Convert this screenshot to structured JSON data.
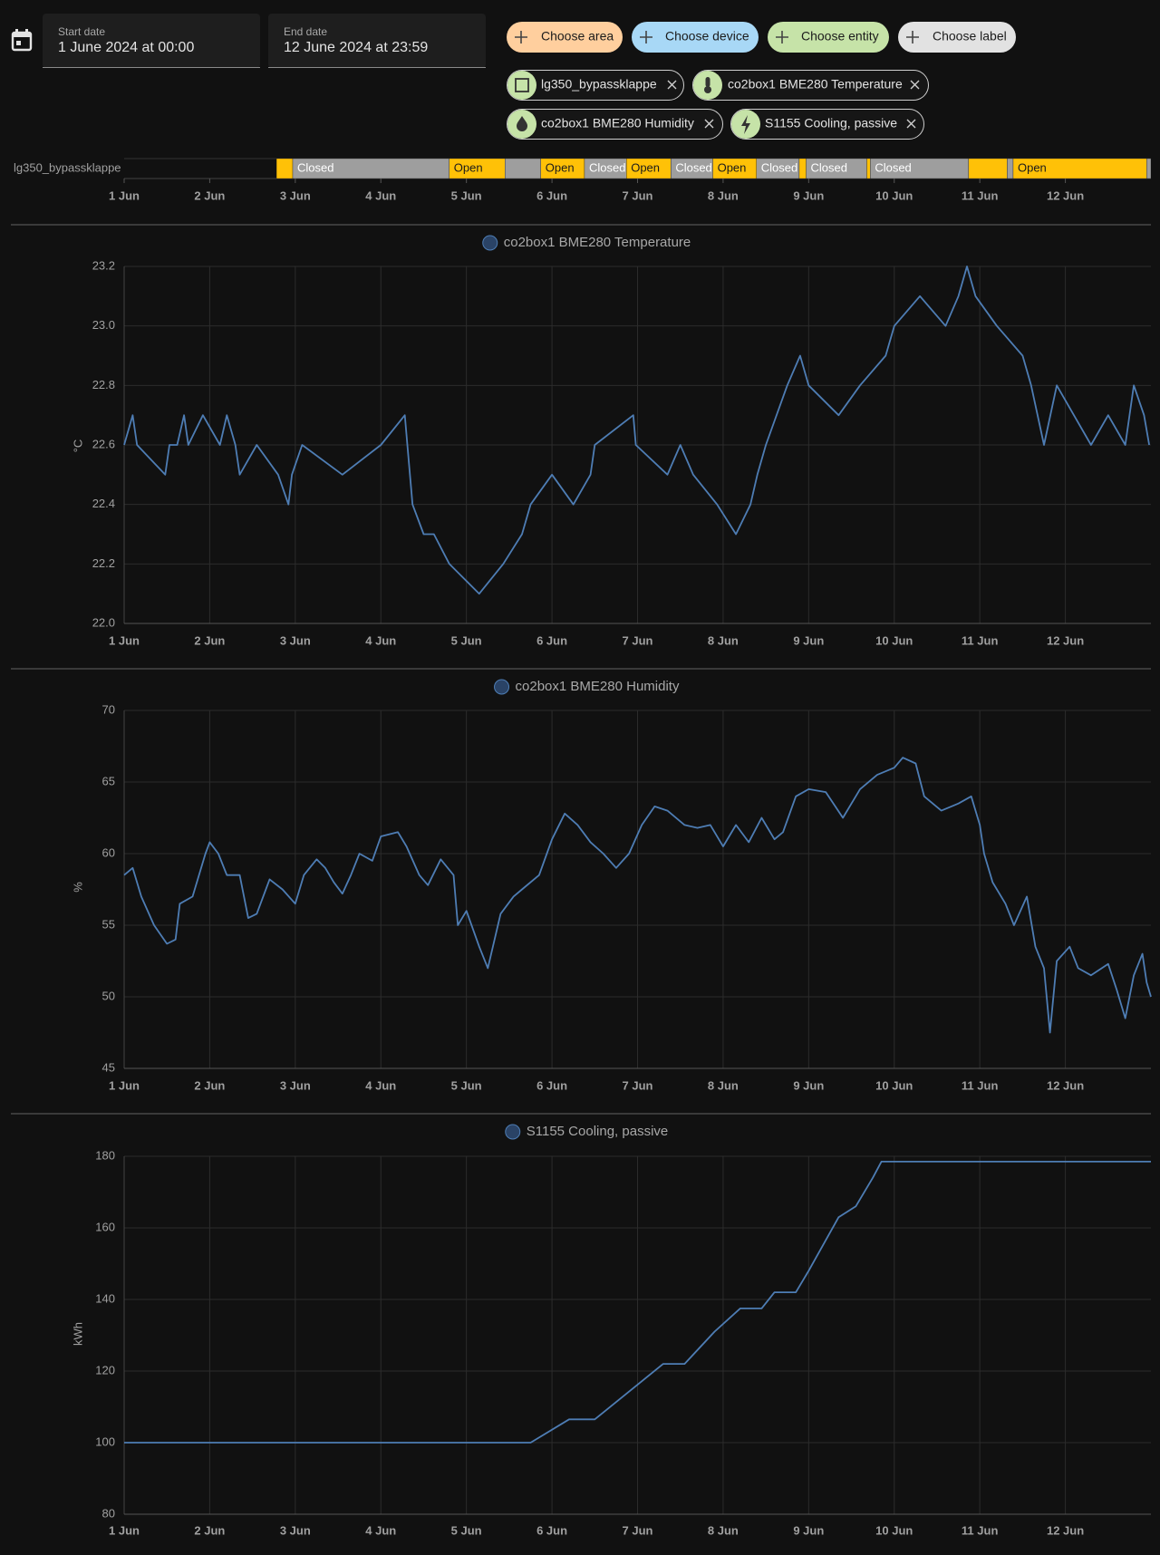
{
  "date_range": {
    "start_label": "Start date",
    "start_value": "1 June 2024 at 00:00",
    "end_label": "End date",
    "end_value": "12 June 2024 at 23:59"
  },
  "pickers": [
    "Choose area",
    "Choose device",
    "Choose entity",
    "Choose label"
  ],
  "chips": [
    "lg350_bypassklappe",
    "co2box1 BME280 Temperature",
    "co2box1 BME280 Humidity",
    "S1155 Cooling, passive"
  ],
  "chart_data": [
    {
      "type": "timeline",
      "label": "lg350_bypassklappe",
      "xlim": [
        1,
        13
      ],
      "xticks": [
        {
          "value": 1,
          "label": "1 Jun"
        },
        {
          "value": 2,
          "label": "2 Jun"
        },
        {
          "value": 3,
          "label": "3 Jun"
        },
        {
          "value": 4,
          "label": "4 Jun"
        },
        {
          "value": 5,
          "label": "5 Jun"
        },
        {
          "value": 6,
          "label": "6 Jun"
        },
        {
          "value": 7,
          "label": "7 Jun"
        },
        {
          "value": 8,
          "label": "8 Jun"
        },
        {
          "value": 9,
          "label": "9 Jun"
        },
        {
          "value": 10,
          "label": "10 Jun"
        },
        {
          "value": 11,
          "label": "11 Jun"
        },
        {
          "value": 12,
          "label": "12 Jun"
        }
      ],
      "state_colors": {
        "Open": "#ffc107",
        "Closed": "#9e9e9e"
      },
      "segments": [
        {
          "start": 2.78,
          "end": 2.97,
          "state": "Open"
        },
        {
          "start": 2.97,
          "end": 4.8,
          "state": "Closed"
        },
        {
          "start": 4.8,
          "end": 5.45,
          "state": "Open"
        },
        {
          "start": 5.45,
          "end": 5.87,
          "state": "Closed"
        },
        {
          "start": 5.87,
          "end": 6.38,
          "state": "Open"
        },
        {
          "start": 6.38,
          "end": 6.87,
          "state": "Closed"
        },
        {
          "start": 6.87,
          "end": 7.39,
          "state": "Open"
        },
        {
          "start": 7.39,
          "end": 7.88,
          "state": "Closed"
        },
        {
          "start": 7.88,
          "end": 8.39,
          "state": "Open"
        },
        {
          "start": 8.39,
          "end": 8.89,
          "state": "Closed"
        },
        {
          "start": 8.89,
          "end": 8.97,
          "state": "Open"
        },
        {
          "start": 8.97,
          "end": 9.68,
          "state": "Closed"
        },
        {
          "start": 9.68,
          "end": 9.72,
          "state": "Open"
        },
        {
          "start": 9.72,
          "end": 10.87,
          "state": "Closed"
        },
        {
          "start": 10.87,
          "end": 11.32,
          "state": "Open"
        },
        {
          "start": 11.32,
          "end": 11.39,
          "state": "Closed"
        },
        {
          "start": 11.39,
          "end": 12.95,
          "state": "Open"
        },
        {
          "start": 12.95,
          "end": 13,
          "state": "Closed"
        }
      ]
    },
    {
      "type": "line",
      "ylabel": "°C",
      "xlim": [
        1,
        13
      ],
      "ylim": [
        22,
        23.2
      ],
      "grid": true,
      "xticks": [
        {
          "value": 1,
          "label": "1 Jun"
        },
        {
          "value": 2,
          "label": "2 Jun"
        },
        {
          "value": 3,
          "label": "3 Jun"
        },
        {
          "value": 4,
          "label": "4 Jun"
        },
        {
          "value": 5,
          "label": "5 Jun"
        },
        {
          "value": 6,
          "label": "6 Jun"
        },
        {
          "value": 7,
          "label": "7 Jun"
        },
        {
          "value": 8,
          "label": "8 Jun"
        },
        {
          "value": 9,
          "label": "9 Jun"
        },
        {
          "value": 10,
          "label": "10 Jun"
        },
        {
          "value": 11,
          "label": "11 Jun"
        },
        {
          "value": 12,
          "label": "12 Jun"
        }
      ],
      "yticks": [
        {
          "value": 22,
          "label": "22.0"
        },
        22.2,
        22.4,
        22.6,
        22.8,
        {
          "value": 23,
          "label": "23.0"
        },
        23.2
      ],
      "x": [
        1.0,
        1.1,
        1.15,
        1.48,
        1.53,
        1.62,
        1.7,
        1.75,
        1.92,
        2.12,
        2.2,
        2.3,
        2.35,
        2.55,
        2.8,
        2.92,
        2.96,
        3.08,
        3.55,
        4.0,
        4.28,
        4.31,
        4.37,
        4.5,
        4.62,
        4.8,
        5.15,
        5.43,
        5.65,
        5.75,
        6.0,
        6.25,
        6.45,
        6.5,
        6.95,
        6.98,
        7.35,
        7.5,
        7.65,
        7.93,
        8.15,
        8.32,
        8.4,
        8.5,
        8.75,
        8.9,
        9.0,
        9.35,
        9.6,
        9.9,
        10.0,
        10.3,
        10.6,
        10.75,
        10.85,
        10.95,
        11.2,
        11.5,
        11.6,
        11.75,
        11.9,
        12.1,
        12.3,
        12.5,
        12.7,
        12.8,
        12.92,
        12.98
      ],
      "series": [
        {
          "name": "co2box1 BME280 Temperature",
          "color": "#4e7db4",
          "values": [
            22.6,
            22.7,
            22.6,
            22.5,
            22.6,
            22.6,
            22.7,
            22.6,
            22.7,
            22.6,
            22.7,
            22.6,
            22.5,
            22.6,
            22.5,
            22.4,
            22.5,
            22.6,
            22.5,
            22.6,
            22.7,
            22.6,
            22.4,
            22.3,
            22.3,
            22.2,
            22.1,
            22.2,
            22.3,
            22.4,
            22.5,
            22.4,
            22.5,
            22.6,
            22.7,
            22.6,
            22.5,
            22.6,
            22.5,
            22.4,
            22.3,
            22.4,
            22.5,
            22.6,
            22.8,
            22.9,
            22.8,
            22.7,
            22.8,
            22.9,
            23.0,
            23.1,
            23.0,
            23.1,
            23.2,
            23.1,
            23.0,
            22.9,
            22.8,
            22.6,
            22.8,
            22.7,
            22.6,
            22.7,
            22.6,
            22.8,
            22.7,
            22.6
          ]
        }
      ]
    },
    {
      "type": "line",
      "ylabel": "%",
      "xlim": [
        1,
        13
      ],
      "ylim": [
        45,
        70
      ],
      "grid": true,
      "xticks": [
        {
          "value": 1,
          "label": "1 Jun"
        },
        {
          "value": 2,
          "label": "2 Jun"
        },
        {
          "value": 3,
          "label": "3 Jun"
        },
        {
          "value": 4,
          "label": "4 Jun"
        },
        {
          "value": 5,
          "label": "5 Jun"
        },
        {
          "value": 6,
          "label": "6 Jun"
        },
        {
          "value": 7,
          "label": "7 Jun"
        },
        {
          "value": 8,
          "label": "8 Jun"
        },
        {
          "value": 9,
          "label": "9 Jun"
        },
        {
          "value": 10,
          "label": "10 Jun"
        },
        {
          "value": 11,
          "label": "11 Jun"
        },
        {
          "value": 12,
          "label": "12 Jun"
        }
      ],
      "yticks": [
        45,
        50,
        55,
        60,
        65,
        70
      ],
      "x": [
        1.0,
        1.1,
        1.2,
        1.35,
        1.5,
        1.6,
        1.65,
        1.8,
        1.95,
        2.0,
        2.1,
        2.2,
        2.35,
        2.45,
        2.55,
        2.7,
        2.85,
        3.0,
        3.1,
        3.25,
        3.35,
        3.45,
        3.55,
        3.65,
        3.75,
        3.9,
        4.0,
        4.2,
        4.3,
        4.45,
        4.55,
        4.7,
        4.85,
        4.9,
        5.0,
        5.15,
        5.25,
        5.4,
        5.55,
        5.65,
        5.85,
        6.0,
        6.15,
        6.3,
        6.45,
        6.6,
        6.75,
        6.9,
        7.05,
        7.2,
        7.35,
        7.55,
        7.7,
        7.85,
        8.0,
        8.15,
        8.3,
        8.45,
        8.6,
        8.7,
        8.85,
        9.0,
        9.2,
        9.4,
        9.6,
        9.8,
        10.0,
        10.1,
        10.25,
        10.35,
        10.55,
        10.75,
        10.9,
        11.0,
        11.05,
        11.15,
        11.3,
        11.4,
        11.55,
        11.65,
        11.75,
        11.82,
        11.9,
        12.05,
        12.15,
        12.3,
        12.5,
        12.6,
        12.7,
        12.8,
        12.9,
        12.95,
        13.0
      ],
      "series": [
        {
          "name": "co2box1 BME280 Humidity",
          "color": "#4e7db4",
          "values": [
            58.5,
            59,
            57,
            55,
            53.7,
            54,
            56.5,
            57,
            60,
            60.8,
            60,
            58.5,
            58.5,
            55.5,
            55.8,
            58.2,
            57.5,
            56.5,
            58.5,
            59.6,
            59,
            58,
            57.2,
            58.5,
            60,
            59.5,
            61.2,
            61.5,
            60.5,
            58.5,
            57.8,
            59.6,
            58.5,
            55,
            56,
            53.5,
            52,
            55.8,
            57,
            57.5,
            58.5,
            61,
            62.8,
            62,
            60.8,
            60,
            59,
            60,
            62,
            63.3,
            63,
            62,
            61.8,
            62,
            60.5,
            62,
            60.8,
            62.5,
            61,
            61.5,
            64,
            64.5,
            64.3,
            62.5,
            64.5,
            65.5,
            66,
            66.7,
            66.3,
            64,
            63,
            63.5,
            64,
            62,
            60,
            58,
            56.5,
            55,
            57,
            53.5,
            52,
            47.5,
            52.5,
            53.5,
            52,
            51.5,
            52.3,
            50.5,
            48.5,
            51.5,
            53,
            51,
            50
          ]
        }
      ]
    },
    {
      "type": "line",
      "ylabel": "kWh",
      "xlim": [
        1,
        13
      ],
      "ylim": [
        80,
        180
      ],
      "grid": true,
      "xticks": [
        {
          "value": 1,
          "label": "1 Jun"
        },
        {
          "value": 2,
          "label": "2 Jun"
        },
        {
          "value": 3,
          "label": "3 Jun"
        },
        {
          "value": 4,
          "label": "4 Jun"
        },
        {
          "value": 5,
          "label": "5 Jun"
        },
        {
          "value": 6,
          "label": "6 Jun"
        },
        {
          "value": 7,
          "label": "7 Jun"
        },
        {
          "value": 8,
          "label": "8 Jun"
        },
        {
          "value": 9,
          "label": "9 Jun"
        },
        {
          "value": 10,
          "label": "10 Jun"
        },
        {
          "value": 11,
          "label": "11 Jun"
        },
        {
          "value": 12,
          "label": "12 Jun"
        }
      ],
      "yticks": [
        80,
        100,
        120,
        140,
        160,
        180
      ],
      "x": [
        1.0,
        5.75,
        6.2,
        6.5,
        7.3,
        7.55,
        7.9,
        8.2,
        8.45,
        8.6,
        8.85,
        9.0,
        9.35,
        9.55,
        9.75,
        9.85,
        13.0
      ],
      "series": [
        {
          "name": "S1155 Cooling, passive",
          "color": "#4e7db4",
          "values": [
            100,
            100,
            106.5,
            106.5,
            122,
            122,
            131,
            137.5,
            137.5,
            142,
            142,
            148,
            163,
            166,
            174,
            178.5,
            178.5
          ]
        }
      ]
    }
  ]
}
